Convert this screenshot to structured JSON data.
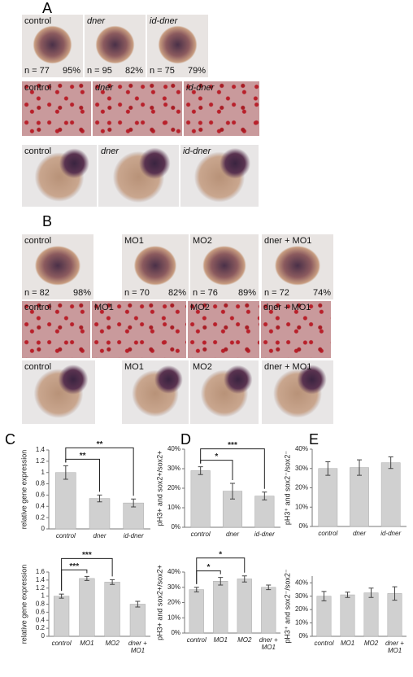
{
  "figure": {
    "A": {
      "label": "A",
      "rows": [
        [
          {
            "label": "control",
            "n": "n = 77",
            "pct": "95%"
          },
          {
            "label": "dner",
            "n": "n = 95",
            "pct": "82%"
          },
          {
            "label": "id-dner",
            "n": "n = 75",
            "pct": "79%"
          }
        ],
        [
          {
            "label": "control"
          },
          {
            "label": "dner"
          },
          {
            "label": "id-dner"
          }
        ],
        [
          {
            "label": "control"
          },
          {
            "label": "dner"
          },
          {
            "label": "id-dner"
          }
        ]
      ]
    },
    "B": {
      "label": "B",
      "rows": [
        [
          {
            "label": "control",
            "n": "n = 82",
            "pct": "98%"
          },
          {
            "label": "MO1",
            "n": "n = 70",
            "pct": "82%"
          },
          {
            "label": "MO2",
            "n": "n = 76",
            "pct": "89%"
          },
          {
            "label": "dner + MO1",
            "n": "n = 72",
            "pct": "74%"
          }
        ],
        [
          {
            "label": "control"
          },
          {
            "label": "MO1"
          },
          {
            "label": "MO2"
          },
          {
            "label": "dner + MO1"
          }
        ],
        [
          {
            "label": "control"
          },
          {
            "label": "MO1"
          },
          {
            "label": "MO2"
          },
          {
            "label": "dner + MO1"
          }
        ]
      ]
    },
    "C": {
      "label": "C"
    },
    "D": {
      "label": "D"
    },
    "E": {
      "label": "E"
    }
  },
  "chart_data": [
    {
      "type": "bar",
      "ylabel": "relative gene expression",
      "categories": [
        "control",
        "dner",
        "id-dner"
      ],
      "values": [
        1.0,
        0.54,
        0.46
      ],
      "errors": [
        0.12,
        0.06,
        0.07
      ],
      "significance": [
        null,
        "**",
        "**"
      ],
      "ylim": [
        0,
        1.4
      ],
      "yticks": [
        0,
        0.2,
        0.4,
        0.6,
        0.8,
        1,
        1.2,
        1.4
      ],
      "color": "#d0d0d0"
    },
    {
      "type": "bar",
      "ylabel": "relative gene expression",
      "categories": [
        "control",
        "MO1",
        "MO2",
        "dner + MO1"
      ],
      "values": [
        1.0,
        1.44,
        1.35,
        0.8
      ],
      "errors": [
        0.05,
        0.05,
        0.06,
        0.07
      ],
      "significance": [
        null,
        "***",
        "***",
        null
      ],
      "ylim": [
        0,
        1.6
      ],
      "yticks": [
        0,
        0.2,
        0.4,
        0.6,
        0.8,
        1,
        1.2,
        1.4,
        1.6
      ],
      "color": "#d0d0d0"
    },
    {
      "type": "bar",
      "ylabel": "pH3+ and sox2+/sox2+",
      "categories": [
        "control",
        "dner",
        "id-dner"
      ],
      "values": [
        29,
        18.5,
        16
      ],
      "errors": [
        2,
        4,
        2
      ],
      "significance": [
        null,
        "*",
        "***"
      ],
      "ylim": [
        0,
        40
      ],
      "yticks": [
        {
          "value": 0,
          "label": "0%"
        },
        {
          "value": 10,
          "label": "10%"
        },
        {
          "value": 20,
          "label": "20%"
        },
        {
          "value": 30,
          "label": "30%"
        },
        {
          "value": 40,
          "label": "40%"
        }
      ],
      "color": "#d0d0d0"
    },
    {
      "type": "bar",
      "ylabel": "pH3+ and sox2+/sox2+",
      "categories": [
        "control",
        "MO1",
        "MO2",
        "dner + MO1"
      ],
      "values": [
        28.5,
        34,
        35.5,
        30
      ],
      "errors": [
        1.5,
        2.5,
        2,
        1.5
      ],
      "significance": [
        null,
        "*",
        "*",
        null
      ],
      "ylim": [
        0,
        40
      ],
      "yticks": [
        {
          "value": 0,
          "label": "0%"
        },
        {
          "value": 10,
          "label": "10%"
        },
        {
          "value": 20,
          "label": "20%"
        },
        {
          "value": 30,
          "label": "30%"
        },
        {
          "value": 40,
          "label": "40%"
        }
      ],
      "color": "#d0d0d0"
    },
    {
      "type": "bar",
      "ylabel": "pH3⁺ and sox2⁻/sox2⁻",
      "categories": [
        "control",
        "dner",
        "id-dner"
      ],
      "values": [
        30,
        30.5,
        33
      ],
      "errors": [
        3.5,
        4,
        3
      ],
      "ylim": [
        0,
        40
      ],
      "yticks": [
        {
          "value": 0,
          "label": "0%"
        },
        {
          "value": 10,
          "label": "10%"
        },
        {
          "value": 20,
          "label": "20%"
        },
        {
          "value": 30,
          "label": "30%"
        },
        {
          "value": 40,
          "label": "40%"
        }
      ],
      "color": "#d0d0d0"
    },
    {
      "type": "bar",
      "ylabel": "pH3⁺ and sox2⁻/sox2⁻",
      "categories": [
        "control",
        "MO1",
        "MO2",
        "dner + MO1"
      ],
      "values": [
        30,
        31,
        32.5,
        32
      ],
      "errors": [
        3.5,
        2,
        3.5,
        5
      ],
      "ylim": [
        0,
        45
      ],
      "yticks": [
        {
          "value": 0,
          "label": "0%"
        },
        {
          "value": 10,
          "label": "10%"
        },
        {
          "value": 20,
          "label": "20%"
        },
        {
          "value": 30,
          "label": "30%"
        },
        {
          "value": 40,
          "label": "40%"
        }
      ],
      "color": "#d0d0d0"
    }
  ]
}
